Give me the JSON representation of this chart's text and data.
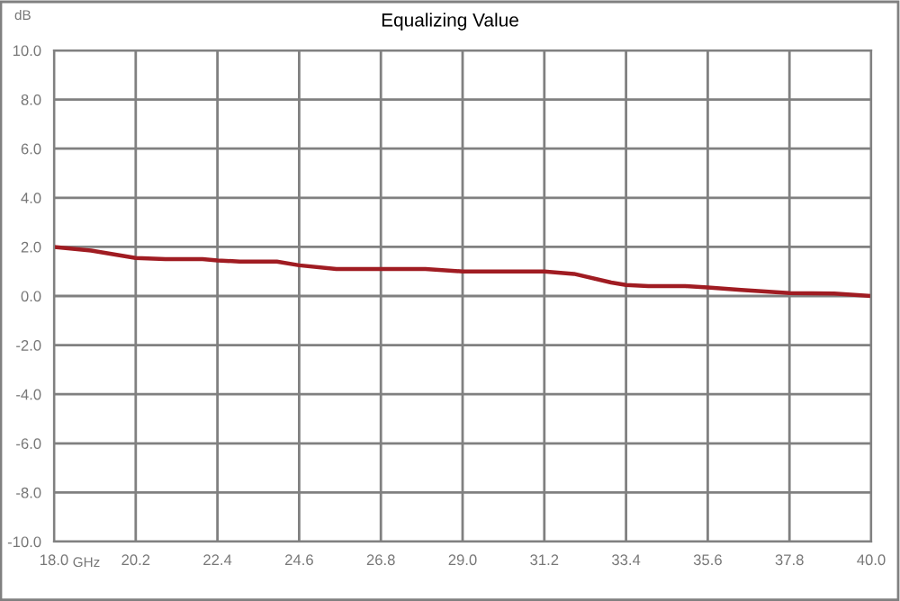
{
  "chart_data": {
    "type": "line",
    "title": "Equalizing Value",
    "xlabel": "GHz",
    "ylabel": "dB",
    "x": [
      18.0,
      19.0,
      20.2,
      21.0,
      22.0,
      22.4,
      23.0,
      24.0,
      24.6,
      25.6,
      26.8,
      28.0,
      29.0,
      30.0,
      31.2,
      32.0,
      33.0,
      33.4,
      34.0,
      35.0,
      35.6,
      36.5,
      37.8,
      39.0,
      40.0
    ],
    "series": [
      {
        "color": "#a01c22",
        "values": [
          2.0,
          1.85,
          1.55,
          1.5,
          1.5,
          1.45,
          1.4,
          1.4,
          1.25,
          1.1,
          1.1,
          1.1,
          1.0,
          1.0,
          1.0,
          0.9,
          0.55,
          0.45,
          0.4,
          0.4,
          0.35,
          0.25,
          0.12,
          0.1,
          0.0
        ]
      }
    ],
    "xlim": [
      18.0,
      40.0
    ],
    "xticks": [
      {
        "value": 18.0,
        "label": "18.0"
      },
      {
        "value": 20.2,
        "label": "20.2"
      },
      {
        "value": 22.4,
        "label": "22.4"
      },
      {
        "value": 24.6,
        "label": "24.6"
      },
      {
        "value": 26.8,
        "label": "26.8"
      },
      {
        "value": 29.0,
        "label": "29.0"
      },
      {
        "value": 31.2,
        "label": "31.2"
      },
      {
        "value": 33.4,
        "label": "33.4"
      },
      {
        "value": 35.6,
        "label": "35.6"
      },
      {
        "value": 37.8,
        "label": "37.8"
      },
      {
        "value": 40.0,
        "label": "40.0"
      }
    ],
    "ylim": [
      -10.0,
      10.0
    ],
    "yticks": [
      {
        "value": -10,
        "label": "-10.0"
      },
      {
        "value": -8,
        "label": "-8.0"
      },
      {
        "value": -6,
        "label": "-6.0"
      },
      {
        "value": -4,
        "label": "-4.0"
      },
      {
        "value": -2,
        "label": "-2.0"
      },
      {
        "value": 0,
        "label": "0.0"
      },
      {
        "value": 2,
        "label": "2.0"
      },
      {
        "value": 4,
        "label": "4.0"
      },
      {
        "value": 6,
        "label": "6.0"
      },
      {
        "value": 8,
        "label": "8.0"
      },
      {
        "value": 10,
        "label": "10.0"
      }
    ],
    "grid": true,
    "marker": "none",
    "line_style": "solid"
  }
}
